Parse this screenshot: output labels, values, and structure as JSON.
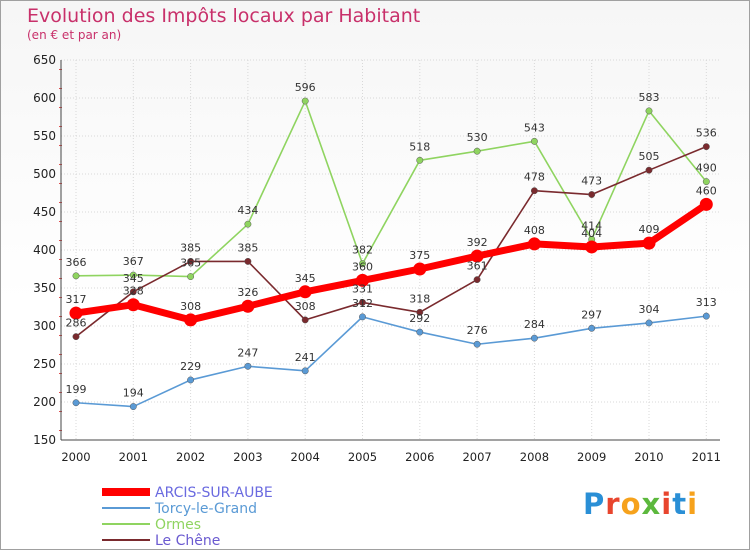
{
  "title": "Evolution des Impôts locaux par Habitant",
  "subtitle": "(en € et par an)",
  "logo": "Proxiti",
  "chart_data": {
    "type": "line",
    "title": "Evolution des Impôts locaux par Habitant",
    "subtitle": "(en € et par an)",
    "categories": [
      "2000",
      "2001",
      "2002",
      "2003",
      "2004",
      "2005",
      "2006",
      "2007",
      "2008",
      "2009",
      "2010",
      "2011"
    ],
    "ylim": [
      150,
      650
    ],
    "yticks": [
      150,
      200,
      250,
      300,
      350,
      400,
      450,
      500,
      550,
      600,
      650
    ],
    "grid": true,
    "legend_position": "bottom-left",
    "series": [
      {
        "name": "ARCIS-SUR-AUBE",
        "color": "#ff0000",
        "values": [
          317,
          328,
          308,
          326,
          345,
          360,
          375,
          392,
          408,
          404,
          409,
          460
        ]
      },
      {
        "name": "Torcy-le-Grand",
        "color": "#5a9ad5",
        "values": [
          199,
          194,
          229,
          247,
          241,
          312,
          292,
          276,
          284,
          297,
          304,
          313
        ]
      },
      {
        "name": "Ormes",
        "color": "#8fd460",
        "values": [
          366,
          367,
          365,
          434,
          596,
          382,
          518,
          530,
          543,
          414,
          583,
          490
        ]
      },
      {
        "name": "Le Chêne",
        "color": "#7a2a2e",
        "values": [
          286,
          345,
          385,
          385,
          308,
          331,
          318,
          361,
          478,
          473,
          505,
          536
        ]
      }
    ]
  }
}
